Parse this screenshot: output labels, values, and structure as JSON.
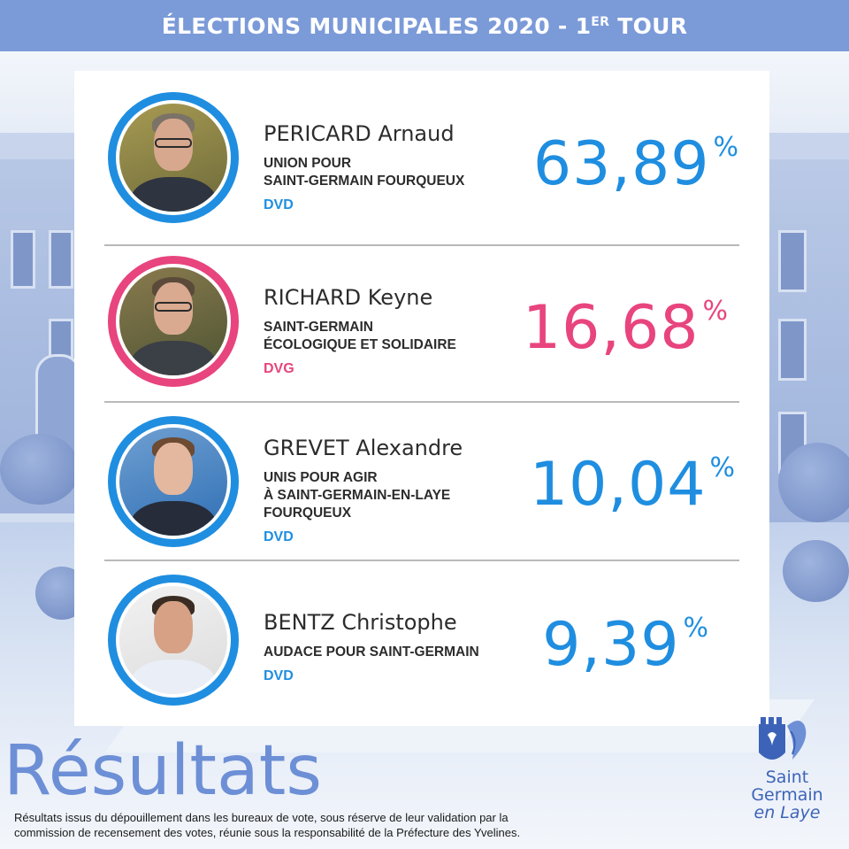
{
  "header": {
    "title_main": "ÉLECTIONS MUNICIPALES 2020 - 1",
    "title_sup": "ER",
    "title_end": " TOUR",
    "color": "#7b9ad8"
  },
  "candidates": [
    {
      "name": "PERICARD Arnaud",
      "list_line1": "UNION POUR",
      "list_line2": "SAINT-GERMAIN FOURQUEUX",
      "list_line3": "",
      "party": "DVD",
      "percent": "63,89",
      "percent_sign": "%",
      "share": 63.89,
      "accent": "#1f8ee0",
      "photo_icon": "candidate-photo"
    },
    {
      "name": "RICHARD Keyne",
      "list_line1": "SAINT-GERMAIN",
      "list_line2": "ÉCOLOGIQUE ET SOLIDAIRE",
      "list_line3": "",
      "party": "DVG",
      "percent": "16,68",
      "percent_sign": "%",
      "share": 16.68,
      "accent": "#e8447d",
      "photo_icon": "candidate-photo"
    },
    {
      "name": "GREVET Alexandre",
      "list_line1": "UNIS POUR AGIR",
      "list_line2": "À SAINT-GERMAIN-EN-LAYE",
      "list_line3": "FOURQUEUX",
      "party": "DVD",
      "percent": "10,04",
      "percent_sign": "%",
      "share": 10.04,
      "accent": "#1f8ee0",
      "photo_icon": "candidate-photo"
    },
    {
      "name": "BENTZ Christophe",
      "list_line1": "AUDACE POUR SAINT-GERMAIN",
      "list_line2": "",
      "list_line3": "",
      "party": "DVD",
      "percent": "9,39",
      "percent_sign": "%",
      "share": 9.39,
      "accent": "#1f8ee0",
      "photo_icon": "candidate-photo"
    }
  ],
  "footer": {
    "heading": "Résultats",
    "disclaimer_line1": "Résultats issus du dépouillement dans les bureaux de vote, sous réserve de leur validation par la",
    "disclaimer_line2": "commission de recensement des votes, réunie sous la responsabilité de la Préfecture des Yvelines.",
    "heading_color": "#6d8fd6"
  },
  "logo": {
    "line1": "Saint",
    "line2": "Germain",
    "line3": "en Laye",
    "icon": "city-crest-icon",
    "color": "#3d63b8"
  }
}
